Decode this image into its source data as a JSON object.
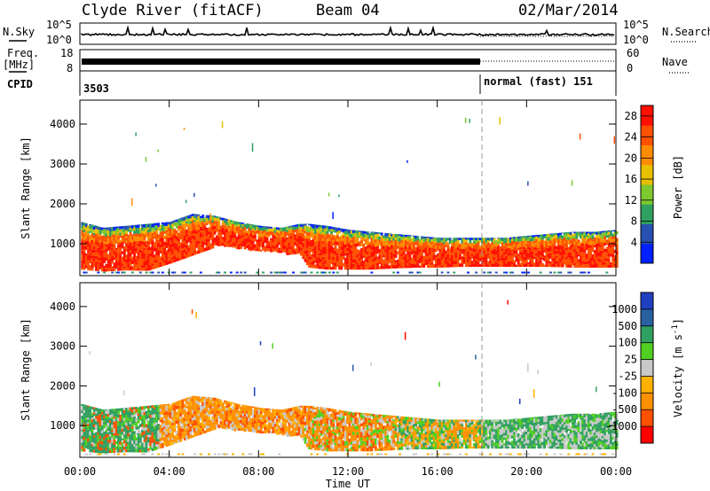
{
  "header": {
    "station": "Clyde River (fitACF)",
    "beam": "Beam 04",
    "date": "02/Mar/2014"
  },
  "left_labels": {
    "nsky": "N.Sky",
    "freq": "Freq.",
    "freq_unit": "[MHz]",
    "cpid": "CPID"
  },
  "right_labels": {
    "nsearch": "N.Search",
    "nave": "Nave"
  },
  "noise_ticks": {
    "top": "10^5",
    "bottom": "10^0"
  },
  "freq_ticks": {
    "top": "18",
    "bottom": "8"
  },
  "nave_ticks": {
    "top": "60",
    "bottom": "0"
  },
  "cpid": {
    "first": "3503",
    "second": "normal (fast) 151",
    "switch_time_hours": 18
  },
  "colors": {
    "power_scale": [
      "#0020ff",
      "#2850b0",
      "#30a060",
      "#7ec830",
      "#e8c000",
      "#ff8c00",
      "#ff5000",
      "#ff1000"
    ],
    "velocity_scale": [
      "#ff0000",
      "#ff5000",
      "#ff9000",
      "#ffb000",
      "#c8c8c8",
      "#50d020",
      "#30a060",
      "#2860a0",
      "#2040c0"
    ]
  },
  "chart_data": [
    {
      "type": "heatmap",
      "name": "power-panel",
      "xlabel": "Time UT",
      "ylabel": "Slant Range [km]",
      "xlim_hours": [
        0,
        24
      ],
      "ylim_km": [
        200,
        4600
      ],
      "yticks": [
        "1000",
        "2000",
        "3000",
        "4000"
      ],
      "colorbar": {
        "label": "Power [dB]",
        "ticks": [
          "4",
          "8",
          "12",
          "16",
          "20",
          "24",
          "28"
        ],
        "range": [
          0,
          30
        ]
      },
      "band_profile": {
        "hours": [
          0,
          1,
          2,
          3,
          4,
          5,
          6,
          7,
          8,
          9,
          9.8,
          10.2,
          11,
          12,
          13,
          14,
          15,
          16,
          17,
          18,
          19,
          20,
          21,
          22,
          23,
          24
        ],
        "lower_km": [
          350,
          300,
          330,
          320,
          500,
          700,
          900,
          800,
          750,
          700,
          750,
          400,
          350,
          350,
          350,
          380,
          400,
          400,
          420,
          420,
          420,
          420,
          420,
          400,
          400,
          400
        ],
        "upper_km": [
          1550,
          1400,
          1450,
          1500,
          1550,
          1750,
          1700,
          1550,
          1450,
          1400,
          1500,
          1500,
          1450,
          1350,
          1300,
          1250,
          1200,
          1150,
          1150,
          1150,
          1150,
          1200,
          1250,
          1300,
          1300,
          1350
        ]
      }
    },
    {
      "type": "heatmap",
      "name": "velocity-panel",
      "xlabel": "Time UT",
      "ylabel": "Slant Range [km]",
      "xlim_hours": [
        0,
        24
      ],
      "ylim_km": [
        200,
        4600
      ],
      "xticks": [
        "00:00",
        "04:00",
        "08:00",
        "12:00",
        "16:00",
        "20:00",
        "00:00"
      ],
      "yticks": [
        "1000",
        "2000",
        "3000",
        "4000"
      ],
      "colorbar": {
        "label": "Velocity [m s^-1]",
        "ticks": [
          "1000",
          "500",
          "100",
          "25",
          "-25",
          "-100",
          "-500",
          "-1000"
        ]
      }
    }
  ]
}
